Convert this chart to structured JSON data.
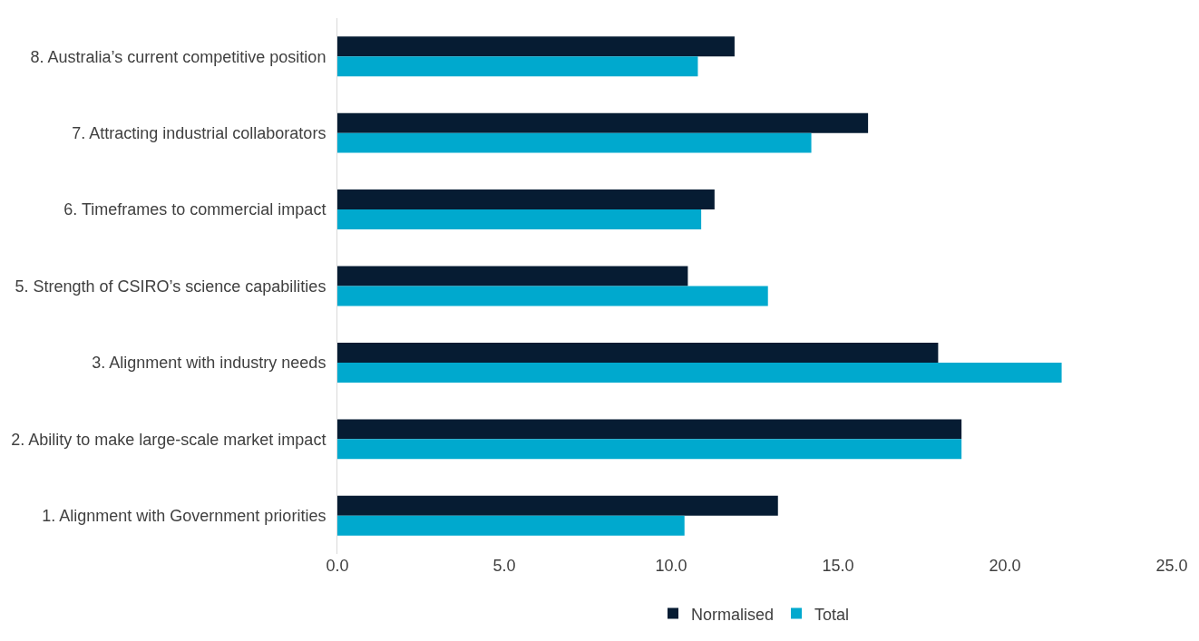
{
  "chart_data": {
    "type": "bar",
    "orientation": "horizontal",
    "categories": [
      "8. Australia’s current competitive position",
      "7. Attracting industrial collaborators",
      "6. Timeframes to commercial impact",
      "5. Strength of CSIRO’s science capabilities",
      "3. Alignment with industry needs",
      "2. Ability to make large-scale market impact",
      "1. Alignment with Government priorities"
    ],
    "series": [
      {
        "name": "Normalised",
        "color": "#061c33",
        "values": [
          11.9,
          15.9,
          11.3,
          10.5,
          18.0,
          18.7,
          13.2
        ]
      },
      {
        "name": "Total",
        "color": "#00a9ce",
        "values": [
          10.8,
          14.2,
          10.9,
          12.9,
          21.7,
          18.7,
          10.4
        ]
      }
    ],
    "xlim": [
      0,
      25
    ],
    "xticks": [
      {
        "value": 0,
        "label": "0.0"
      },
      {
        "value": 5,
        "label": "5.0"
      },
      {
        "value": 10,
        "label": "10.0"
      },
      {
        "value": 15,
        "label": "15.0"
      },
      {
        "value": 20,
        "label": "20.0"
      },
      {
        "value": 25,
        "label": "25.0"
      }
    ],
    "grid": false,
    "legend": "bottom"
  }
}
